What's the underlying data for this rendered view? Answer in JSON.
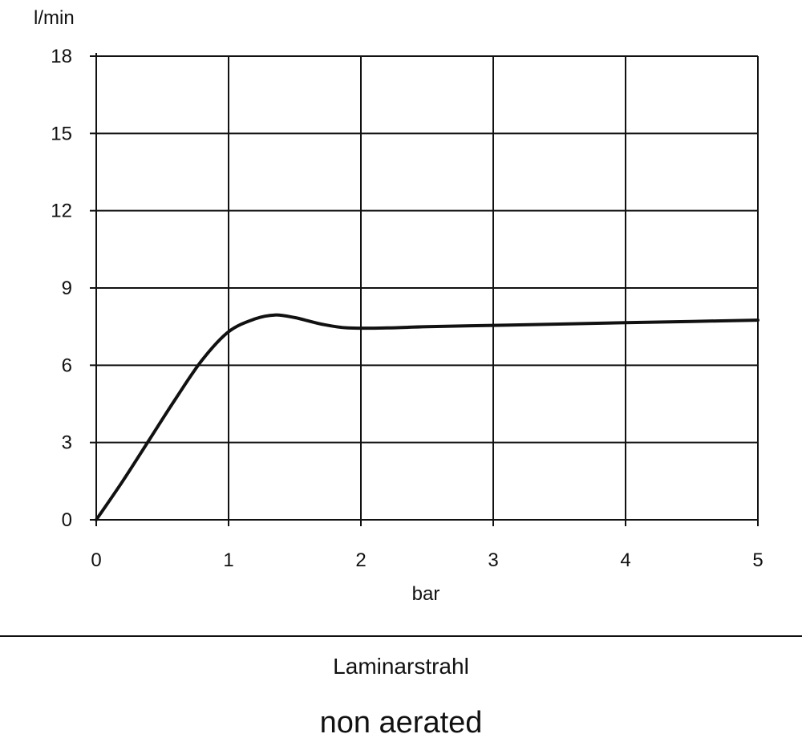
{
  "chart_data": {
    "type": "line",
    "ylabel": "l/min",
    "xlabel": "bar",
    "xlim": [
      0,
      5
    ],
    "ylim": [
      0,
      18
    ],
    "xticks": [
      "0",
      "1",
      "2",
      "3",
      "4",
      "5"
    ],
    "yticks": [
      "0",
      "3",
      "6",
      "9",
      "12",
      "15",
      "18"
    ],
    "grid": true,
    "series": [
      {
        "color": "#111111",
        "x": [
          0,
          0.2,
          0.4,
          0.6,
          0.8,
          1.0,
          1.2,
          1.35,
          1.5,
          1.7,
          1.9,
          2.2,
          2.5,
          3.0,
          3.5,
          4.0,
          4.5,
          5.0
        ],
        "y": [
          0,
          1.5,
          3.1,
          4.7,
          6.2,
          7.3,
          7.8,
          7.95,
          7.85,
          7.6,
          7.45,
          7.45,
          7.5,
          7.55,
          7.6,
          7.65,
          7.7,
          7.75
        ]
      }
    ]
  },
  "captions": {
    "line1": "Laminarstrahl",
    "line2": "non aerated"
  }
}
